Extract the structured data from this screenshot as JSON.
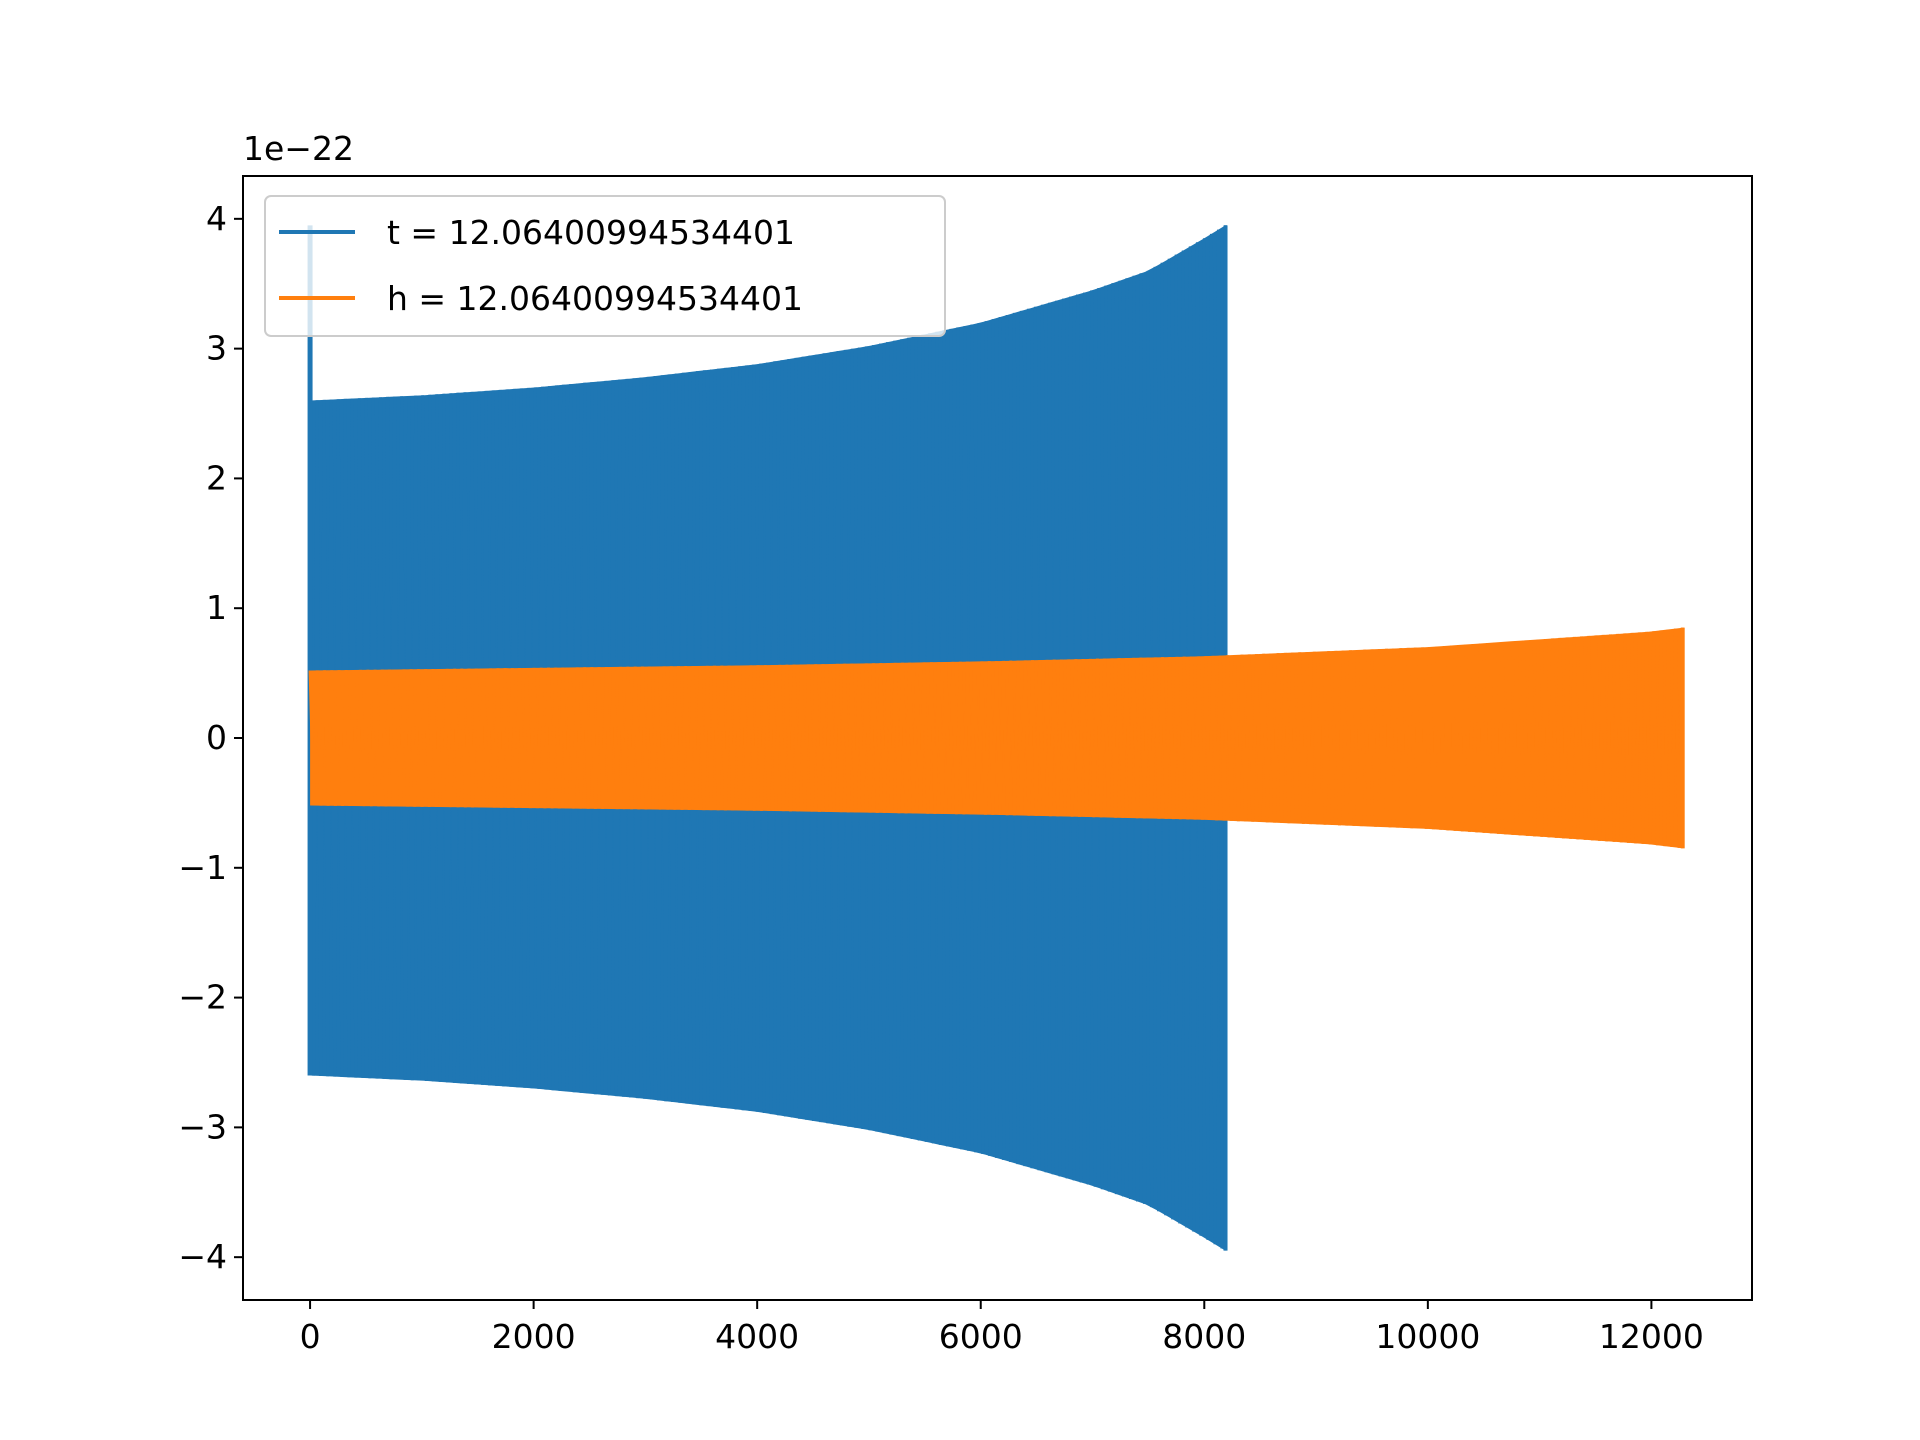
{
  "chart_data": {
    "type": "line",
    "title": "",
    "xlabel": "",
    "ylabel": "",
    "xlim": [
      -600,
      12900
    ],
    "ylim": [
      -4.33,
      4.33
    ],
    "y_offset_label": "1e−22",
    "x_ticks": [
      0,
      2000,
      4000,
      6000,
      8000,
      10000,
      12000
    ],
    "x_tick_labels": [
      "0",
      "2000",
      "4000",
      "6000",
      "8000",
      "10000",
      "12000"
    ],
    "y_ticks": [
      4,
      3,
      2,
      1,
      0,
      -1,
      -2,
      -3,
      -4
    ],
    "y_tick_labels": [
      "4",
      "3",
      "2",
      "1",
      "0",
      "−1",
      "−2",
      "−3",
      "−4"
    ],
    "grid": false,
    "legend_position": "upper-left",
    "series": [
      {
        "name": "t = 12.06400994534401",
        "color": "#1f77b4",
        "start_spike": 3.95,
        "envelope_x": [
          0,
          500,
          1000,
          2000,
          3000,
          4000,
          5000,
          6000,
          7000,
          7500,
          8000,
          8190
        ],
        "envelope_amp": [
          2.6,
          2.62,
          2.64,
          2.7,
          2.78,
          2.88,
          3.02,
          3.2,
          3.45,
          3.6,
          3.85,
          3.95
        ]
      },
      {
        "name": "h = 12.06400994534401",
        "color": "#ff7f0e",
        "envelope_x": [
          0,
          2000,
          4000,
          6000,
          8000,
          10000,
          12000,
          12280
        ],
        "envelope_amp": [
          0.52,
          0.54,
          0.56,
          0.59,
          0.63,
          0.7,
          0.82,
          0.85
        ]
      }
    ]
  }
}
